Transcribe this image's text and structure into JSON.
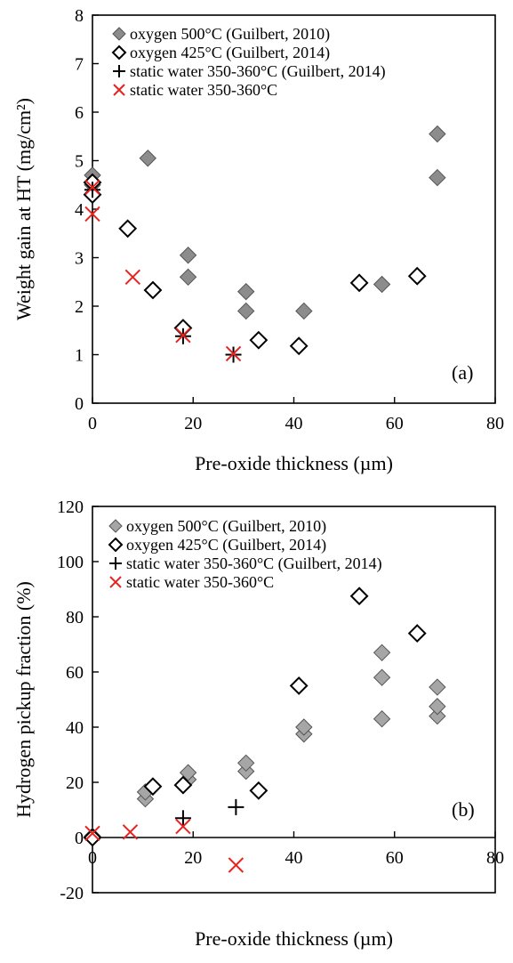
{
  "figure": {
    "panels": [
      {
        "id": "a",
        "tag": "(a)"
      },
      {
        "id": "b",
        "tag": "(b)"
      }
    ]
  },
  "chart_data": [
    {
      "type": "scatter",
      "panel": "(a)",
      "title": "",
      "xlabel": "Pre-oxide thickness (µm)",
      "ylabel": "Weight gain at HT (mg/cm²)",
      "xlim": [
        0,
        80
      ],
      "ylim": [
        0,
        8
      ],
      "xticks": [
        0,
        20,
        40,
        60,
        80
      ],
      "yticks": [
        0,
        1,
        2,
        3,
        4,
        5,
        6,
        7,
        8
      ],
      "grid": false,
      "legend_position": "top-left",
      "series": [
        {
          "name": "oxygen 500°C (Guilbert, 2010)",
          "marker": "filled-diamond",
          "color": "#8c8c8c",
          "points": [
            [
              0,
              4.7
            ],
            [
              0,
              4.5
            ],
            [
              11,
              5.05
            ],
            [
              19,
              3.05
            ],
            [
              19,
              2.6
            ],
            [
              30.5,
              2.3
            ],
            [
              30.5,
              1.9
            ],
            [
              42,
              1.9
            ],
            [
              57.5,
              2.45
            ],
            [
              68.5,
              5.55
            ],
            [
              68.5,
              4.65
            ]
          ]
        },
        {
          "name": "oxygen 425°C (Guilbert, 2014)",
          "marker": "open-diamond",
          "color": "#000000",
          "points": [
            [
              0,
              4.55
            ],
            [
              0,
              4.3
            ],
            [
              7,
              3.6
            ],
            [
              12,
              2.33
            ],
            [
              18,
              1.55
            ],
            [
              33,
              1.3
            ],
            [
              41,
              1.18
            ],
            [
              53,
              2.48
            ],
            [
              64.5,
              2.62
            ]
          ]
        },
        {
          "name": "static water 350-360°C (Guilbert, 2014)",
          "marker": "plus",
          "color": "#000000",
          "points": [
            [
              0,
              4.4
            ],
            [
              18,
              1.38
            ],
            [
              28,
              1.0
            ]
          ]
        },
        {
          "name": "static water 350-360°C",
          "marker": "x",
          "color": "#e8231f",
          "points": [
            [
              0,
              4.45
            ],
            [
              0,
              3.9
            ],
            [
              8,
              2.6
            ],
            [
              18,
              1.4
            ],
            [
              28,
              1.02
            ]
          ]
        }
      ],
      "annotations": [
        "(a)"
      ]
    },
    {
      "type": "scatter",
      "panel": "(b)",
      "title": "",
      "xlabel": "Pre-oxide thickness (µm)",
      "ylabel": "Hydrogen pickup fraction (%)",
      "xlim": [
        0,
        80
      ],
      "ylim": [
        -20,
        120
      ],
      "xticks": [
        0,
        20,
        40,
        60,
        80
      ],
      "yticks": [
        -20,
        0,
        20,
        40,
        60,
        80,
        100,
        120
      ],
      "grid": false,
      "legend_position": "top-left",
      "series": [
        {
          "name": "oxygen 500°C (Guilbert, 2010)",
          "marker": "filled-diamond",
          "color": "#a6a6a6",
          "points": [
            [
              0,
              0.5
            ],
            [
              10.5,
              14
            ],
            [
              10.5,
              16.5
            ],
            [
              19,
              21
            ],
            [
              19,
              23.5
            ],
            [
              30.5,
              24
            ],
            [
              30.5,
              27
            ],
            [
              42,
              37.5
            ],
            [
              42,
              40
            ],
            [
              57.5,
              43
            ],
            [
              57.5,
              58
            ],
            [
              57.5,
              67
            ],
            [
              68.5,
              44
            ],
            [
              68.5,
              47.5
            ],
            [
              68.5,
              54.5
            ]
          ]
        },
        {
          "name": "oxygen 425°C (Guilbert, 2014)",
          "marker": "open-diamond",
          "color": "#000000",
          "points": [
            [
              0,
              0
            ],
            [
              12,
              18.5
            ],
            [
              18,
              19
            ],
            [
              33,
              17
            ],
            [
              41,
              55
            ],
            [
              53,
              87.5
            ],
            [
              64.5,
              74
            ]
          ]
        },
        {
          "name": "static water 350-360°C (Guilbert, 2014)",
          "marker": "plus",
          "color": "#000000",
          "points": [
            [
              18,
              7
            ],
            [
              28.5,
              11
            ]
          ]
        },
        {
          "name": "static water 350-360°C",
          "marker": "x",
          "color": "#e8231f",
          "points": [
            [
              0,
              1.5
            ],
            [
              7.5,
              2
            ],
            [
              18,
              4
            ],
            [
              28.5,
              -10
            ]
          ]
        }
      ],
      "annotations": [
        "(b)"
      ]
    }
  ]
}
